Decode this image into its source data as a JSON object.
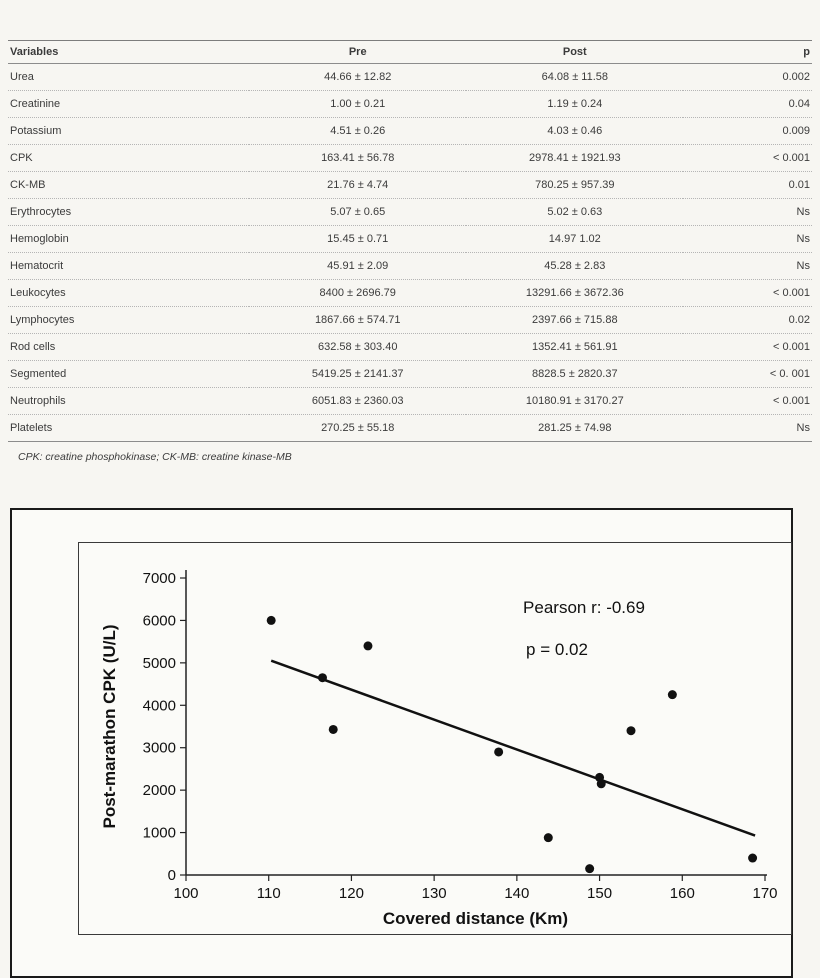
{
  "table": {
    "headers": {
      "variables": "Variables",
      "pre": "Pre",
      "post": "Post",
      "p": "p"
    },
    "rows": [
      {
        "variable": "Urea",
        "pre": "44.66 ± 12.82",
        "post": "64.08 ± 11.58",
        "p": "0.002"
      },
      {
        "variable": "Creatinine",
        "pre": "1.00 ± 0.21",
        "post": "1.19 ± 0.24",
        "p": "0.04"
      },
      {
        "variable": "Potassium",
        "pre": "4.51 ± 0.26",
        "post": "4.03 ± 0.46",
        "p": "0.009"
      },
      {
        "variable": "CPK",
        "pre": "163.41 ± 56.78",
        "post": "2978.41 ± 1921.93",
        "p": "< 0.001"
      },
      {
        "variable": "CK-MB",
        "pre": "21.76 ± 4.74",
        "post": "780.25 ± 957.39",
        "p": "0.01"
      },
      {
        "variable": "Erythrocytes",
        "pre": "5.07 ± 0.65",
        "post": "5.02 ± 0.63",
        "p": "Ns"
      },
      {
        "variable": "Hemoglobin",
        "pre": "15.45 ± 0.71",
        "post": "14.97 1.02",
        "p": "Ns"
      },
      {
        "variable": "Hematocrit",
        "pre": "45.91 ± 2.09",
        "post": "45.28 ± 2.83",
        "p": "Ns"
      },
      {
        "variable": "Leukocytes",
        "pre": "8400 ± 2696.79",
        "post": "13291.66 ± 3672.36",
        "p": "< 0.001"
      },
      {
        "variable": "Lymphocytes",
        "pre": "1867.66 ± 574.71",
        "post": "2397.66 ± 715.88",
        "p": "0.02"
      },
      {
        "variable": "Rod cells",
        "pre": "632.58 ± 303.40",
        "post": "1352.41 ± 561.91",
        "p": "< 0.001"
      },
      {
        "variable": "Segmented",
        "pre": "5419.25 ± 2141.37",
        "post": "8828.5 ± 2820.37",
        "p": "< 0. 001"
      },
      {
        "variable": "Neutrophils",
        "pre": "6051.83 ± 2360.03",
        "post": "10180.91 ± 3170.27",
        "p": "< 0.001"
      },
      {
        "variable": "Platelets",
        "pre": "270.25 ± 55.18",
        "post": "281.25 ± 74.98",
        "p": "Ns"
      }
    ],
    "footnote": "CPK: creatine phosphokinase; CK-MB: creatine kinase-MB"
  },
  "chart_data": {
    "type": "scatter",
    "title": "",
    "xlabel": "Covered distance (Km)",
    "ylabel": "Post-marathon CPK (U/L)",
    "xlim": [
      100,
      170
    ],
    "ylim": [
      0,
      7000
    ],
    "xticks": [
      100,
      110,
      120,
      130,
      140,
      150,
      160,
      170
    ],
    "yticks": [
      0,
      1000,
      2000,
      3000,
      4000,
      5000,
      6000,
      7000
    ],
    "grid": false,
    "legend": "none",
    "points": [
      {
        "x": 110.3,
        "y": 6000
      },
      {
        "x": 116.5,
        "y": 4650
      },
      {
        "x": 117.8,
        "y": 3430
      },
      {
        "x": 122.0,
        "y": 5400
      },
      {
        "x": 137.8,
        "y": 2900
      },
      {
        "x": 143.8,
        "y": 880
      },
      {
        "x": 148.8,
        "y": 150
      },
      {
        "x": 150.0,
        "y": 2300
      },
      {
        "x": 150.2,
        "y": 2150
      },
      {
        "x": 153.8,
        "y": 3400
      },
      {
        "x": 158.8,
        "y": 4250
      },
      {
        "x": 168.5,
        "y": 400
      }
    ],
    "trendline": {
      "x1": 110.3,
      "y1": 5050,
      "x2": 168.8,
      "y2": 930
    },
    "annotations": [
      {
        "text": "Pearson r: -0.69"
      },
      {
        "text": "p = 0.02"
      }
    ],
    "point_color": "#111111",
    "line_color": "#111111",
    "axis_color": "#222222"
  }
}
